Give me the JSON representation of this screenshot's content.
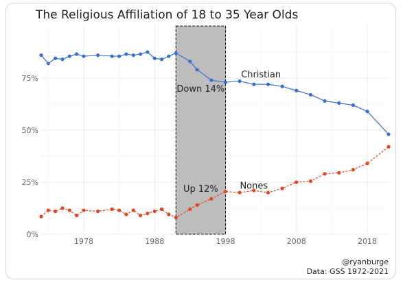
{
  "chart_data": {
    "type": "line",
    "title": "The Religious Affiliation of 18 to 35 Year Olds",
    "xlabel": "",
    "ylabel": "",
    "xlim": [
      1972,
      2021
    ],
    "ylim": [
      0,
      100
    ],
    "x_ticks": [
      1978,
      1988,
      1998,
      2008,
      2018
    ],
    "y_ticks": [
      0,
      25,
      50,
      75
    ],
    "y_tick_labels": [
      "0%",
      "25%",
      "50%",
      "75%"
    ],
    "grid": true,
    "series": [
      {
        "name": "Christian",
        "color": "#3a6fd0",
        "line_style": "solid",
        "x": [
          1972,
          1973,
          1974,
          1975,
          1976,
          1977,
          1978,
          1980,
          1982,
          1983,
          1984,
          1985,
          1986,
          1987,
          1988,
          1989,
          1990,
          1991,
          1993,
          1994,
          1996,
          1998,
          2000,
          2002,
          2004,
          2006,
          2008,
          2010,
          2012,
          2014,
          2016,
          2018,
          2021
        ],
        "values": [
          86,
          82,
          84.5,
          84,
          85.5,
          86.5,
          85.5,
          86,
          85.5,
          85.5,
          86.5,
          86,
          86.5,
          87.5,
          84.5,
          84,
          85.5,
          87,
          83,
          79,
          74,
          73,
          73.5,
          72,
          72,
          71,
          69,
          67,
          64,
          63,
          62,
          59,
          48
        ]
      },
      {
        "name": "Nones",
        "color": "#e2451f",
        "line_style": "dashed",
        "x": [
          1972,
          1973,
          1974,
          1975,
          1976,
          1977,
          1978,
          1980,
          1982,
          1983,
          1984,
          1985,
          1986,
          1987,
          1988,
          1989,
          1990,
          1991,
          1993,
          1994,
          1996,
          1998,
          2000,
          2002,
          2004,
          2006,
          2008,
          2010,
          2012,
          2014,
          2016,
          2018,
          2021
        ],
        "values": [
          8.5,
          11.5,
          11,
          12.5,
          11.5,
          9,
          11.5,
          11,
          12,
          11.5,
          9.5,
          11.5,
          9,
          10,
          11,
          12,
          9.5,
          8,
          12,
          14,
          17,
          20.5,
          20,
          21,
          20,
          22,
          25,
          25.5,
          29,
          29.5,
          31,
          34,
          42
        ]
      }
    ],
    "shaded_region": {
      "x_start": 1991,
      "x_end": 1998
    },
    "annotations": [
      {
        "text": "Christian",
        "x": 2003,
        "y": 77
      },
      {
        "text": "Down 14%",
        "x": 1994.5,
        "y": 70
      },
      {
        "text": "Up 12%",
        "x": 1994.5,
        "y": 22
      },
      {
        "text": "Nones",
        "x": 2002,
        "y": 23.5
      }
    ]
  },
  "credits": {
    "author": "@ryanburge",
    "source": "Data: GSS 1972-2021"
  }
}
